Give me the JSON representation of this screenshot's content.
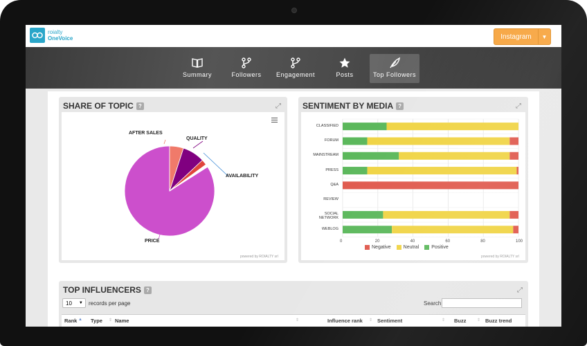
{
  "app": {
    "logo_line1": "roialty",
    "logo_line2": "OneVoice",
    "channel_button": "Instagram"
  },
  "nav": [
    {
      "label": "Summary",
      "icon": "book-icon"
    },
    {
      "label": "Followers",
      "icon": "branch-icon"
    },
    {
      "label": "Engagement",
      "icon": "branch-icon"
    },
    {
      "label": "Posts",
      "icon": "star-icon"
    },
    {
      "label": "Top Followers",
      "icon": "feather-icon",
      "active": true
    }
  ],
  "share_of_topic": {
    "title": "SHARE OF TOPIC",
    "powered": "powered by ROIALTY srl",
    "chart_data": {
      "type": "pie",
      "slices": [
        {
          "label": "PRICE",
          "value": 84,
          "color": "#cc4fcc"
        },
        {
          "label": "AFTER SALES",
          "value": 5,
          "color": "#f07a6a"
        },
        {
          "label": "QUALITY",
          "value": 8,
          "color": "#800080"
        },
        {
          "label": "",
          "value": 2,
          "color": "#e0453c"
        },
        {
          "label": "AVAILABILITY",
          "value": 1,
          "color": "#ffffff"
        }
      ]
    }
  },
  "sentiment_by_media": {
    "title": "SENTIMENT BY MEDIA",
    "powered": "powered by ROIALTY srl",
    "chart_data": {
      "type": "bar",
      "orientation": "horizontal",
      "stacked": true,
      "categories": [
        "CLASSIFIED",
        "FORUM",
        "MAINSTREAM",
        "PRESS",
        "Q&A",
        "REVIEW",
        "SOCIAL NETWORK",
        "WEBLOG"
      ],
      "series": [
        {
          "name": "Positive",
          "color": "#5cb85c",
          "values": [
            25,
            14,
            32,
            14,
            0,
            0,
            23,
            28
          ]
        },
        {
          "name": "Neutral",
          "color": "#f0d445",
          "values": [
            75,
            81,
            63,
            85,
            0,
            0,
            72,
            69
          ]
        },
        {
          "name": "Negative",
          "color": "#e05a4e",
          "values": [
            0,
            5,
            5,
            1,
            100,
            0,
            5,
            3
          ]
        }
      ],
      "x_ticks": [
        "0",
        "20",
        "40",
        "60",
        "80",
        "100"
      ],
      "xlim": [
        0,
        100
      ],
      "legend_position": "bottom",
      "grid": true
    }
  },
  "top_influencers": {
    "title": "TOP INFLUENCERS",
    "page_size": "10",
    "page_size_suffix": "records per page",
    "search_label": "Search:",
    "search_value": "",
    "columns": [
      "Rank",
      "Type",
      "Name",
      "Influence rank",
      "Sentiment",
      "Buzz",
      "Buzz trend"
    ]
  }
}
